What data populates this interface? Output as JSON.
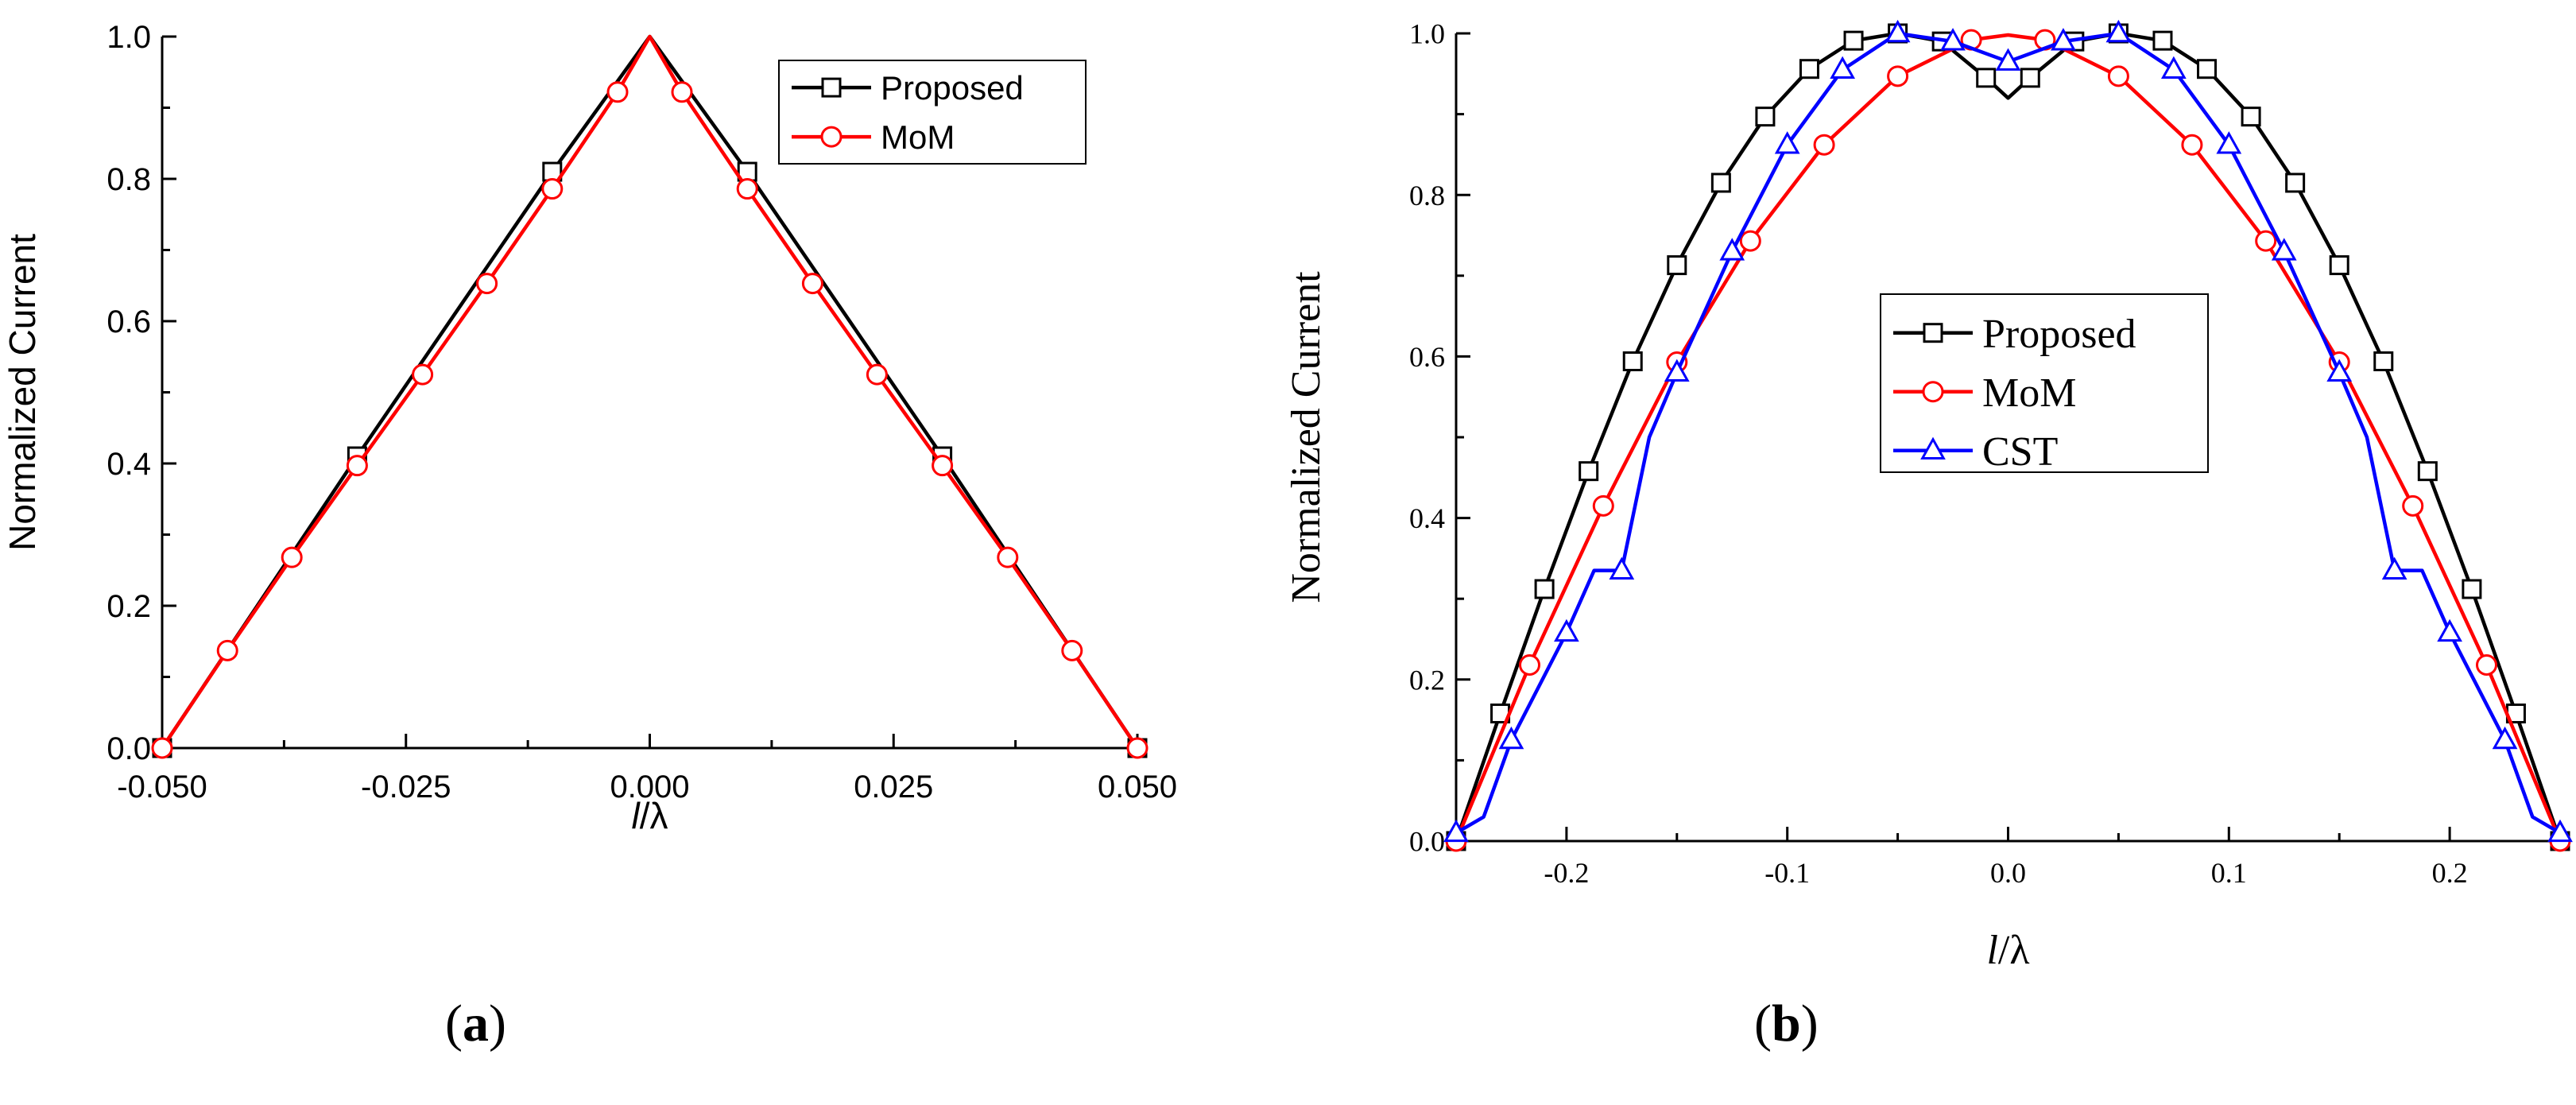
{
  "chart_data": [
    {
      "type": "line",
      "panel_label": "a",
      "title": "",
      "xlabel": "l/λ",
      "xlabel_italic_part": "l",
      "xlabel_rest": "/λ",
      "ylabel": "Normalized Current",
      "xlim": [
        -0.05,
        0.05
      ],
      "ylim": [
        0,
        1.0
      ],
      "x_ticks": [
        -0.05,
        -0.025,
        0.0,
        0.025,
        0.05
      ],
      "x_tick_labels": [
        "-0.050",
        "-0.025",
        "0.000",
        "0.025",
        "0.050"
      ],
      "y_ticks": [
        0,
        0.2,
        0.4,
        0.6,
        0.8,
        1.0
      ],
      "y_tick_labels": [
        "0.0",
        "0.2",
        "0.4",
        "0.6",
        "0.8",
        "1.0"
      ],
      "grid": false,
      "legend_position": "top-right",
      "series": [
        {
          "name": "Proposed",
          "color": "#000000",
          "marker": "square",
          "x": [
            -0.05,
            -0.04,
            -0.03,
            -0.02,
            -0.01,
            0.0,
            0.01,
            0.02,
            0.03,
            0.04,
            0.05
          ],
          "y": [
            0.0,
            0.205,
            0.41,
            0.61,
            0.81,
            1.0,
            0.81,
            0.61,
            0.41,
            0.205,
            0.0
          ],
          "marker_x": [
            -0.05,
            -0.03,
            -0.01,
            0.01,
            0.03,
            0.05
          ],
          "marker_y": [
            0.0,
            0.41,
            0.81,
            0.81,
            0.41,
            0.0
          ]
        },
        {
          "name": "MoM",
          "color": "#ff0000",
          "marker": "circle",
          "x": [
            -0.05,
            -0.0433,
            -0.0367,
            -0.03,
            -0.0233,
            -0.0167,
            -0.01,
            -0.0033,
            0.0,
            0.0033,
            0.01,
            0.0167,
            0.0233,
            0.03,
            0.0367,
            0.0433,
            0.05
          ],
          "y": [
            0.0,
            0.137,
            0.268,
            0.397,
            0.525,
            0.653,
            0.786,
            0.922,
            1.0,
            0.922,
            0.786,
            0.653,
            0.525,
            0.397,
            0.268,
            0.137,
            0.0
          ],
          "marker_x": [
            -0.05,
            -0.0433,
            -0.0367,
            -0.03,
            -0.0233,
            -0.0167,
            -0.01,
            -0.0033,
            0.0033,
            0.01,
            0.0167,
            0.0233,
            0.03,
            0.0367,
            0.0433,
            0.05
          ],
          "marker_y": [
            0.0,
            0.137,
            0.268,
            0.397,
            0.525,
            0.653,
            0.786,
            0.922,
            0.922,
            0.786,
            0.653,
            0.525,
            0.397,
            0.268,
            0.137,
            0.0
          ]
        }
      ]
    },
    {
      "type": "line",
      "panel_label": "b",
      "title": "",
      "xlabel": "l/λ",
      "xlabel_italic_part": "l",
      "xlabel_rest": "/λ",
      "ylabel": "Normalized Current",
      "xlim": [
        -0.25,
        0.25
      ],
      "ylim": [
        0,
        1.0
      ],
      "x_ticks": [
        -0.2,
        -0.1,
        0.0,
        0.1,
        0.2
      ],
      "x_tick_labels": [
        "-0.2",
        "-0.1",
        "0.0",
        "0.1",
        "0.2"
      ],
      "y_ticks": [
        0,
        0.2,
        0.4,
        0.6,
        0.8,
        1.0
      ],
      "y_tick_labels": [
        "0.0",
        "0.2",
        "0.4",
        "0.6",
        "0.8",
        "1.0"
      ],
      "grid": false,
      "legend_position": "center",
      "series": [
        {
          "name": "Proposed",
          "color": "#000000",
          "marker": "square",
          "x": [
            -0.25,
            -0.23,
            -0.21,
            -0.19,
            -0.17,
            -0.15,
            -0.13,
            -0.11,
            -0.09,
            -0.07,
            -0.05,
            -0.03,
            -0.01,
            0.0,
            0.01,
            0.03,
            0.05,
            0.07,
            0.09,
            0.11,
            0.13,
            0.15,
            0.17,
            0.19,
            0.21,
            0.23,
            0.25
          ],
          "y": [
            0.0,
            0.158,
            0.312,
            0.458,
            0.594,
            0.713,
            0.815,
            0.897,
            0.956,
            0.991,
            1.0,
            0.99,
            0.945,
            0.92,
            0.945,
            0.99,
            1.0,
            0.991,
            0.956,
            0.897,
            0.815,
            0.713,
            0.594,
            0.458,
            0.312,
            0.158,
            0.0
          ],
          "marker_x": [
            -0.25,
            -0.23,
            -0.21,
            -0.19,
            -0.17,
            -0.15,
            -0.13,
            -0.11,
            -0.09,
            -0.07,
            -0.05,
            -0.03,
            -0.01,
            0.01,
            0.03,
            0.05,
            0.07,
            0.09,
            0.11,
            0.13,
            0.15,
            0.17,
            0.19,
            0.21,
            0.23,
            0.25
          ],
          "marker_y": [
            0.0,
            0.158,
            0.312,
            0.458,
            0.594,
            0.713,
            0.815,
            0.897,
            0.956,
            0.991,
            1.0,
            0.99,
            0.945,
            0.945,
            0.99,
            1.0,
            0.991,
            0.956,
            0.897,
            0.815,
            0.713,
            0.594,
            0.458,
            0.312,
            0.158,
            0.0
          ]
        },
        {
          "name": "MoM",
          "color": "#ff0000",
          "marker": "circle",
          "x": [
            -0.25,
            -0.2167,
            -0.1833,
            -0.15,
            -0.1167,
            -0.0833,
            -0.05,
            -0.0167,
            0.0,
            0.0167,
            0.05,
            0.0833,
            0.1167,
            0.15,
            0.1833,
            0.2167,
            0.25
          ],
          "y": [
            0.0,
            0.218,
            0.415,
            0.593,
            0.743,
            0.862,
            0.947,
            0.992,
            0.998,
            0.992,
            0.947,
            0.862,
            0.743,
            0.593,
            0.415,
            0.218,
            0.0
          ],
          "marker_x": [
            -0.25,
            -0.2167,
            -0.1833,
            -0.15,
            -0.1167,
            -0.0833,
            -0.05,
            -0.0167,
            0.0167,
            0.05,
            0.0833,
            0.1167,
            0.15,
            0.1833,
            0.2167,
            0.25
          ],
          "marker_y": [
            0.0,
            0.218,
            0.415,
            0.593,
            0.743,
            0.862,
            0.947,
            0.992,
            0.992,
            0.947,
            0.862,
            0.743,
            0.593,
            0.415,
            0.218,
            0.0
          ]
        },
        {
          "name": "CST",
          "color": "#0000ff",
          "marker": "triangle",
          "x": [
            -0.25,
            -0.2375,
            -0.225,
            -0.2,
            -0.1875,
            -0.175,
            -0.1625,
            -0.15,
            -0.125,
            -0.1,
            -0.075,
            -0.05,
            -0.025,
            0.0,
            0.025,
            0.05,
            0.075,
            0.1,
            0.125,
            0.15,
            0.1625,
            0.175,
            0.1875,
            0.2,
            0.225,
            0.2375,
            0.25
          ],
          "y": [
            0.01,
            0.03,
            0.125,
            0.258,
            0.335,
            0.335,
            0.5,
            0.58,
            0.73,
            0.862,
            0.955,
            1.0,
            0.99,
            0.965,
            0.99,
            1.0,
            0.955,
            0.862,
            0.73,
            0.58,
            0.5,
            0.335,
            0.335,
            0.258,
            0.125,
            0.03,
            0.01
          ],
          "marker_x": [
            -0.25,
            -0.225,
            -0.2,
            -0.175,
            -0.15,
            -0.125,
            -0.1,
            -0.075,
            -0.05,
            -0.025,
            0.0,
            0.025,
            0.05,
            0.075,
            0.1,
            0.125,
            0.15,
            0.175,
            0.2,
            0.225,
            0.25
          ],
          "marker_y": [
            0.01,
            0.125,
            0.258,
            0.335,
            0.58,
            0.73,
            0.862,
            0.955,
            1.0,
            0.99,
            0.965,
            0.99,
            1.0,
            0.955,
            0.862,
            0.73,
            0.58,
            0.335,
            0.258,
            0.125,
            0.01
          ]
        }
      ]
    }
  ]
}
